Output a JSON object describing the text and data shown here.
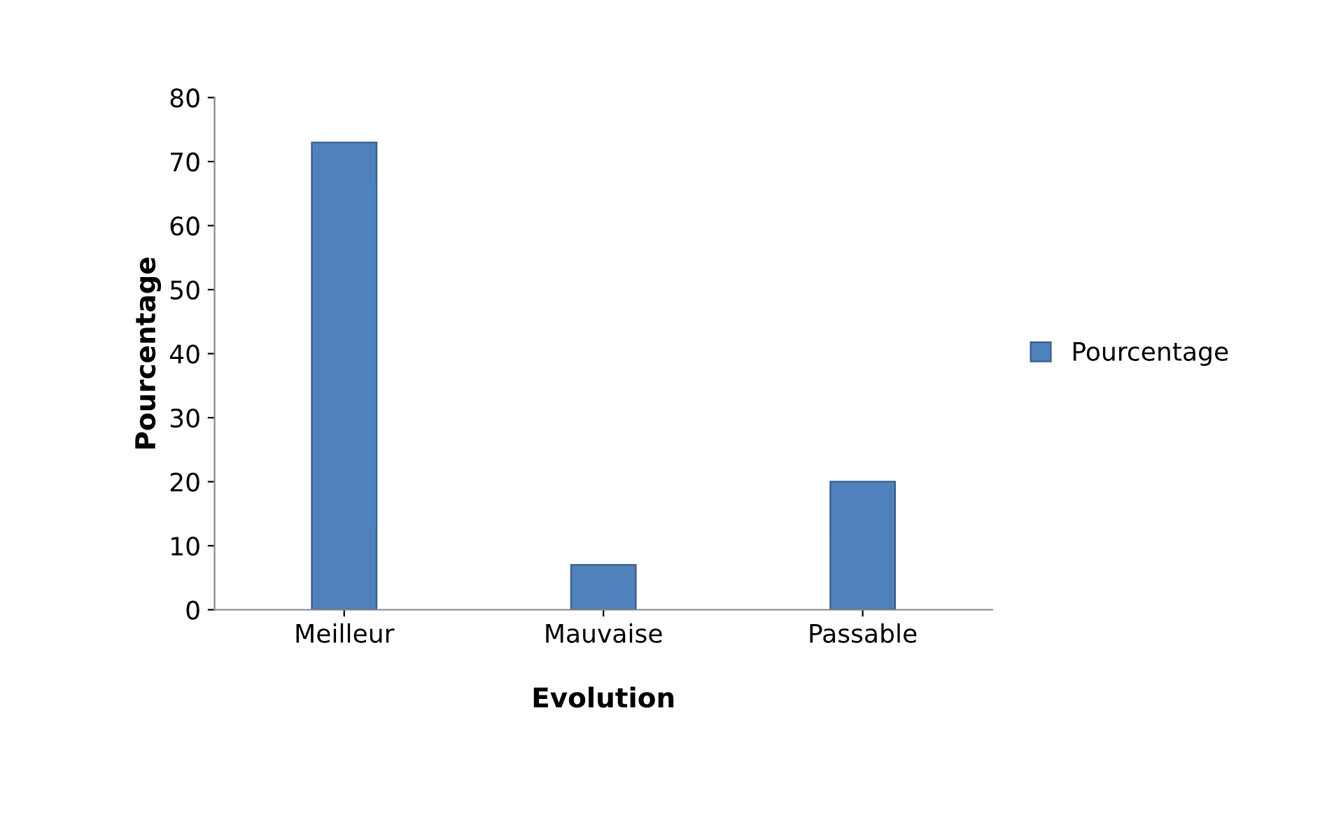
{
  "chart_data": {
    "type": "bar",
    "xlabel": "Evolution",
    "ylabel": "Pourcentage",
    "categories": [
      "Meilleur",
      "Mauvaise",
      "Passable"
    ],
    "series": [
      {
        "name": "Pourcentage",
        "color": "#4f81bd",
        "values": [
          73,
          7,
          20
        ]
      }
    ],
    "ylim": [
      0,
      80
    ],
    "yticks": [
      0,
      10,
      20,
      30,
      40,
      50,
      60,
      70,
      80
    ],
    "grid": false,
    "legend": "right"
  }
}
